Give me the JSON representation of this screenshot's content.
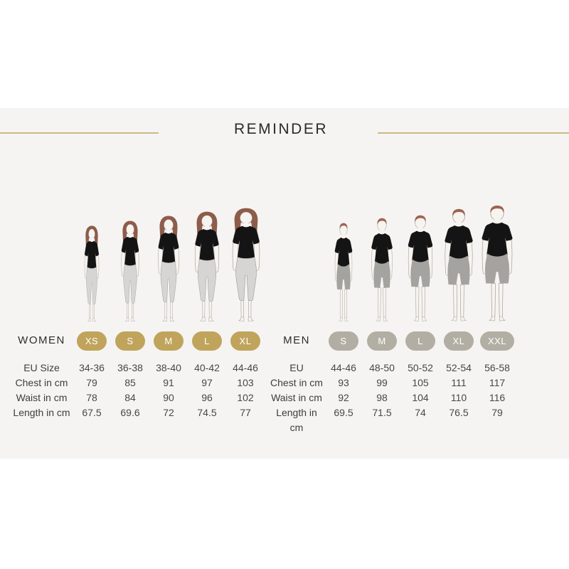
{
  "title": "REMINDER",
  "colors": {
    "accent_line": "#c9ba87",
    "panel_bg": "#f5f4f2",
    "badge_gold": "#c0a45c",
    "badge_taupe": "#b2aea3"
  },
  "figure_colors": {
    "skin": "#f7f3ef",
    "outline": "#9a948e",
    "woman_hair": "#8e5c4a",
    "man_hair": "#9c6450",
    "shirt": "#141414",
    "leggings": "#d6d5d3",
    "leggings_outline": "#8f8f8f",
    "shorts": "#a5a3a0"
  },
  "women": {
    "label": "WOMEN",
    "sizes": [
      "XS",
      "S",
      "M",
      "L",
      "XL"
    ],
    "rows": [
      {
        "label": "EU Size",
        "values": [
          "34-36",
          "36-38",
          "38-40",
          "40-42",
          "44-46"
        ]
      },
      {
        "label": "Chest in cm",
        "values": [
          "79",
          "85",
          "91",
          "97",
          "103"
        ]
      },
      {
        "label": "Waist in cm",
        "values": [
          "78",
          "84",
          "90",
          "96",
          "102"
        ]
      },
      {
        "label": "Length in cm",
        "values": [
          "67.5",
          "69.6",
          "72",
          "74.5",
          "77"
        ]
      }
    ]
  },
  "men": {
    "label": "MEN",
    "sizes": [
      "S",
      "M",
      "L",
      "XL",
      "XXL"
    ],
    "rows": [
      {
        "label": "EU",
        "values": [
          "44-46",
          "48-50",
          "50-52",
          "52-54",
          "56-58"
        ]
      },
      {
        "label": "Chest in cm",
        "values": [
          "93",
          "99",
          "105",
          "111",
          "117"
        ]
      },
      {
        "label": "Waist in cm",
        "values": [
          "92",
          "98",
          "104",
          "110",
          "116"
        ]
      },
      {
        "label": "Length in cm",
        "values": [
          "69.5",
          "71.5",
          "74",
          "76.5",
          "79"
        ]
      }
    ]
  }
}
